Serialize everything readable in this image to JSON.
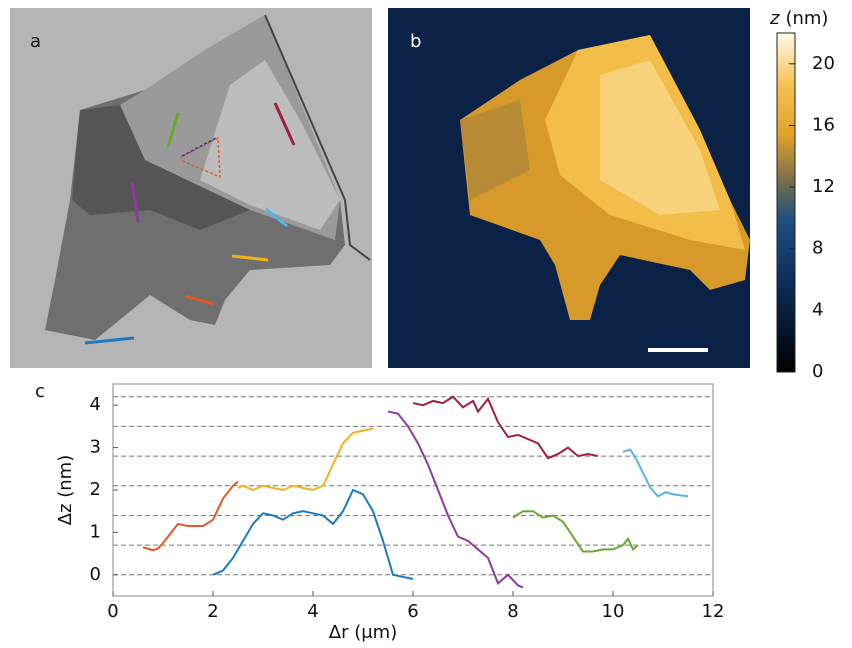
{
  "panels": {
    "a": {
      "label": "a"
    },
    "b": {
      "label": "b"
    }
  },
  "colorbar": {
    "label_symbol": "z",
    "label_unit": "(nm)",
    "lim": [
      0,
      22
    ],
    "ticks": [
      0,
      4,
      8,
      12,
      16,
      20
    ]
  },
  "chart_data": {
    "type": "line",
    "panel_label": "c",
    "xlabel": "Δr (μm)",
    "ylabel": "Δz (nm)",
    "xlim": [
      0,
      12
    ],
    "ylim": [
      -0.5,
      4.5
    ],
    "xticks": [
      0,
      2,
      4,
      6,
      8,
      10,
      12
    ],
    "yticks": [
      0,
      1,
      2,
      3,
      4
    ],
    "hlines": [
      0,
      0.7,
      1.4,
      2.1,
      2.8,
      3.5,
      4.2
    ],
    "series": [
      {
        "color": "#e0592a",
        "x": [
          0.6,
          0.8,
          0.9,
          1.0,
          1.2,
          1.3,
          1.5,
          1.8,
          2.0,
          2.2,
          2.4,
          2.5
        ],
        "values": [
          0.65,
          0.58,
          0.62,
          0.75,
          1.05,
          1.2,
          1.15,
          1.15,
          1.3,
          1.8,
          2.1,
          2.2
        ]
      },
      {
        "color": "#f2b11e",
        "x": [
          2.5,
          2.6,
          2.8,
          3.0,
          3.2,
          3.4,
          3.6,
          3.8,
          4.0,
          4.2,
          4.4,
          4.6,
          4.8,
          5.0,
          5.2
        ],
        "values": [
          2.05,
          2.1,
          2.0,
          2.1,
          2.05,
          2.0,
          2.1,
          2.05,
          2.0,
          2.1,
          2.6,
          3.1,
          3.35,
          3.4,
          3.45
        ]
      },
      {
        "color": "#1a7bc4",
        "x": [
          2.0,
          2.2,
          2.4,
          2.6,
          2.8,
          3.0,
          3.2,
          3.4,
          3.6,
          3.8,
          4.0,
          4.2,
          4.4,
          4.6,
          4.8,
          5.0,
          5.2,
          5.4,
          5.6,
          5.8,
          6.0
        ],
        "values": [
          0.0,
          0.1,
          0.4,
          0.8,
          1.2,
          1.45,
          1.4,
          1.3,
          1.45,
          1.5,
          1.45,
          1.4,
          1.2,
          1.5,
          2.0,
          1.9,
          1.5,
          0.8,
          0.0,
          -0.05,
          -0.1
        ]
      },
      {
        "color": "#8e3a9e",
        "x": [
          5.5,
          5.7,
          5.9,
          6.1,
          6.3,
          6.5,
          6.7,
          6.9,
          7.1,
          7.3,
          7.5,
          7.7,
          7.9,
          8.1,
          8.2
        ],
        "values": [
          3.85,
          3.8,
          3.5,
          3.1,
          2.6,
          2.0,
          1.4,
          0.9,
          0.8,
          0.6,
          0.4,
          -0.2,
          0.0,
          -0.25,
          -0.3
        ]
      },
      {
        "color": "#a0203a",
        "x": [
          6.0,
          6.2,
          6.4,
          6.6,
          6.8,
          7.0,
          7.2,
          7.3,
          7.5,
          7.7,
          7.9,
          8.1,
          8.3,
          8.5,
          8.7,
          8.9,
          9.1,
          9.3,
          9.5,
          9.7
        ],
        "values": [
          4.05,
          4.0,
          4.1,
          4.05,
          4.2,
          3.95,
          4.1,
          3.85,
          4.15,
          3.6,
          3.25,
          3.3,
          3.2,
          3.1,
          2.75,
          2.85,
          3.0,
          2.8,
          2.85,
          2.8
        ]
      },
      {
        "color": "#6aa832",
        "x": [
          8.0,
          8.2,
          8.4,
          8.6,
          8.8,
          9.0,
          9.2,
          9.4,
          9.6,
          9.8,
          10.0,
          10.2,
          10.3,
          10.4,
          10.5
        ],
        "values": [
          1.35,
          1.5,
          1.5,
          1.35,
          1.4,
          1.25,
          0.9,
          0.55,
          0.55,
          0.6,
          0.6,
          0.7,
          0.85,
          0.6,
          0.7
        ]
      },
      {
        "color": "#56b4e9",
        "x": [
          10.2,
          10.35,
          10.5,
          10.6,
          10.75,
          10.9,
          11.05,
          11.2,
          11.5
        ],
        "values": [
          2.9,
          2.95,
          2.65,
          2.4,
          2.05,
          1.85,
          1.95,
          1.9,
          1.85
        ]
      }
    ]
  }
}
